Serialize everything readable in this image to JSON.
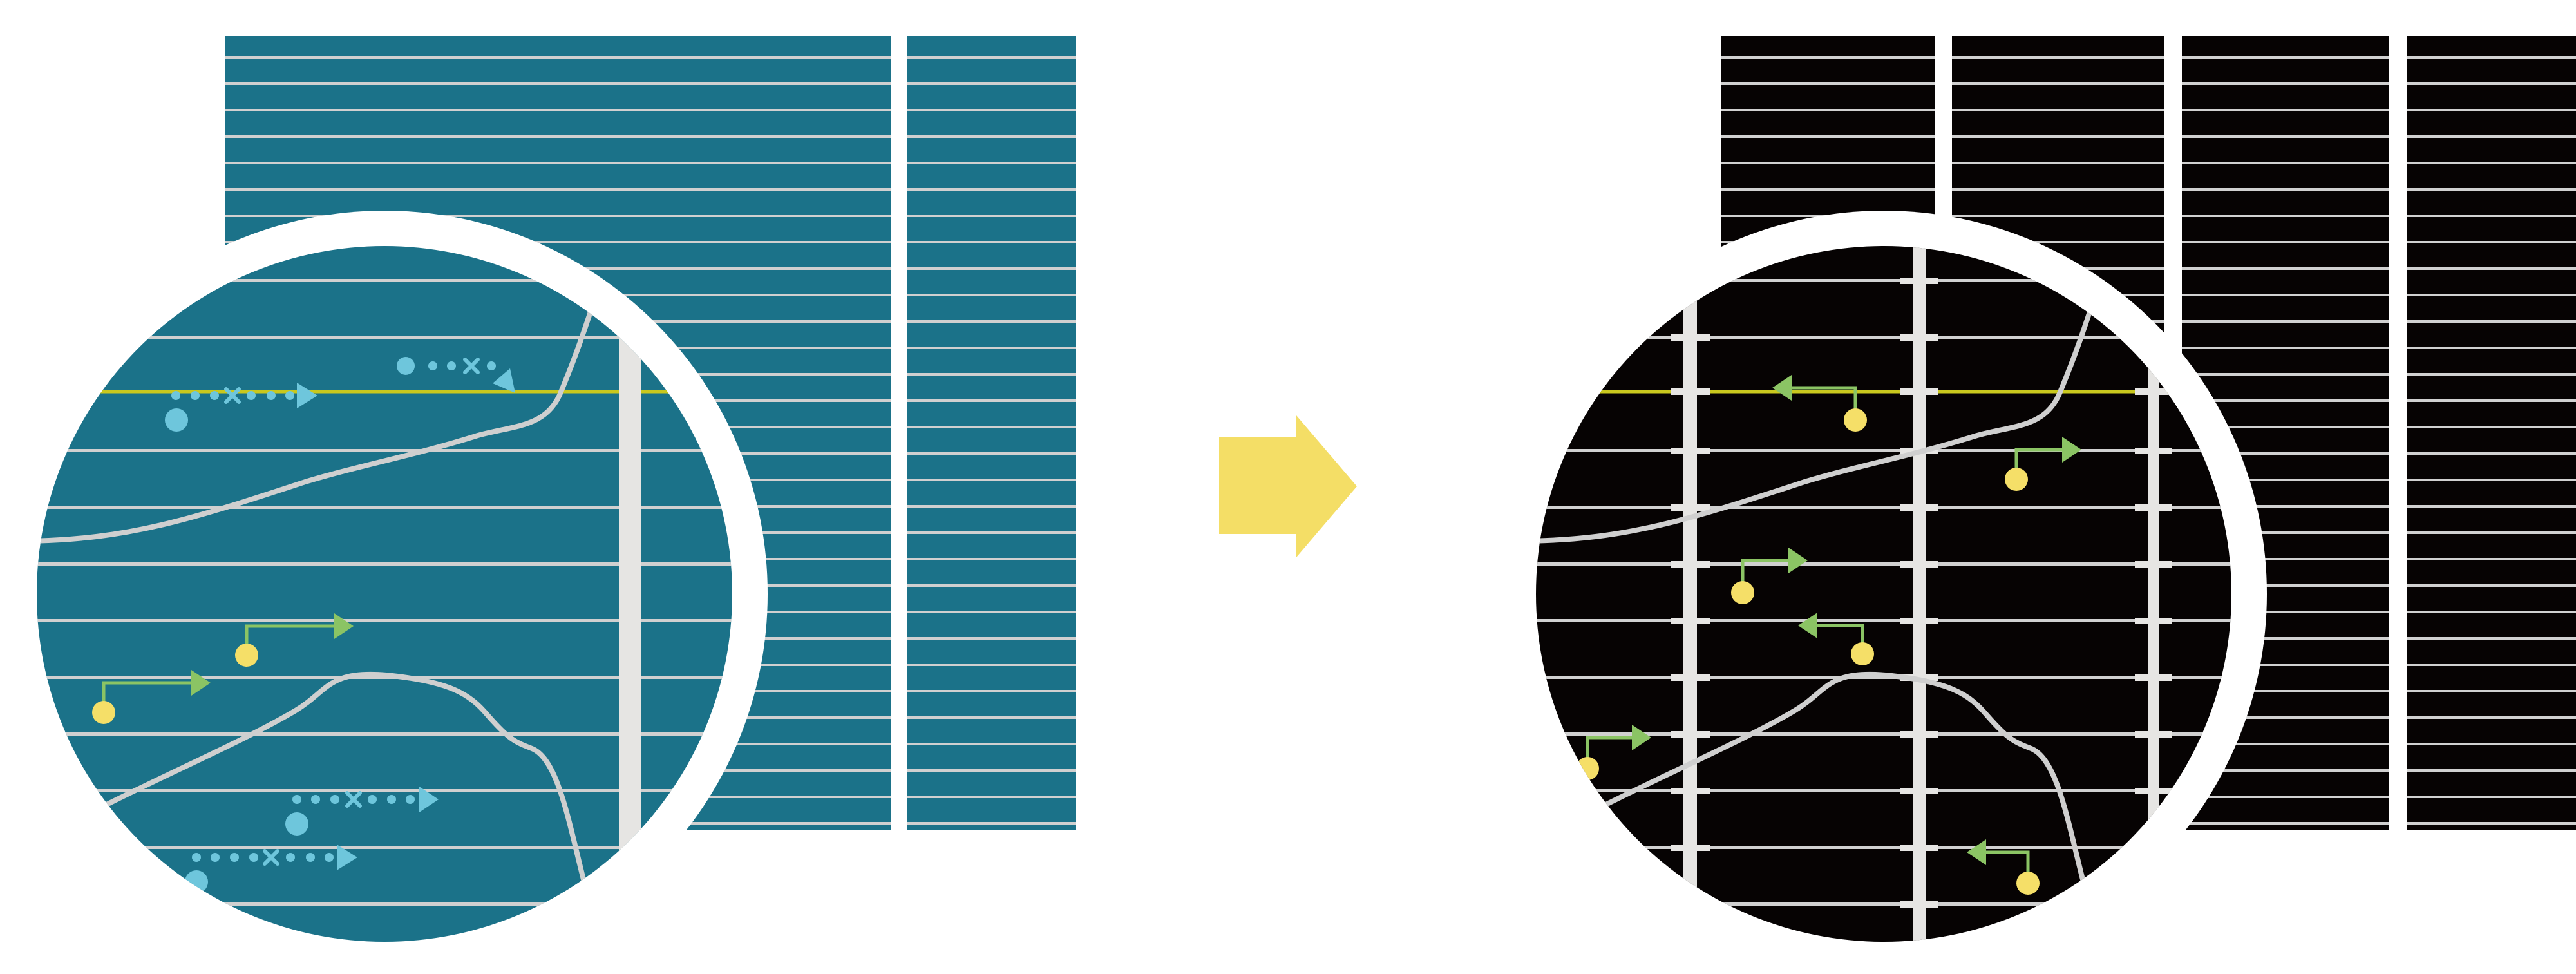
{
  "diagram": {
    "colors": {
      "background": "#ffffff",
      "before_panel": "#1b7289",
      "after_panel": "#060303",
      "stripe": "#d0d0d0",
      "highlight_line": "#c9c81e",
      "divider_bar": "#e6e5e3",
      "curve": "#cfcfcf",
      "transition_arrow": "#f4de66",
      "node": "#f5df68",
      "directed_arrow": "#8bc464",
      "dotted_trajectory": "#6ec6dc"
    },
    "panels": [
      {
        "name": "before",
        "icon": "magnifier-lens"
      },
      {
        "name": "after",
        "icon": "magnifier-lens"
      }
    ],
    "transition": {
      "icon": "arrow-right-icon"
    }
  }
}
